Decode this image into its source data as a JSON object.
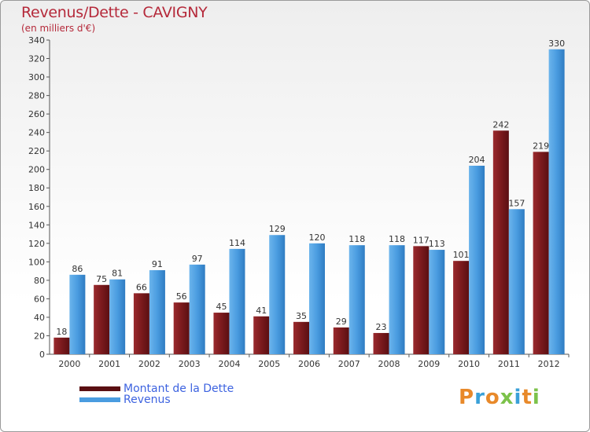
{
  "title": "Revenus/Dette - CAVIGNY",
  "subtitle": "(en milliers d'€)",
  "colors": {
    "dette": "#7b1a1d",
    "revenus": "#4a9ce0",
    "title": "#b5293a",
    "legend_text": "#3d63e0"
  },
  "legend": {
    "dette_label": "Montant de la Dette",
    "revenus_label": "Revenus"
  },
  "logo": {
    "text": "Proxiti",
    "letter_colors": [
      "#e8892a",
      "#3aa0d8",
      "#e8892a",
      "#7cc24a",
      "#3aa0d8",
      "#e8892a",
      "#7cc24a"
    ]
  },
  "chart_data": {
    "type": "bar",
    "title": "Revenus/Dette - CAVIGNY",
    "subtitle": "(en milliers d'€)",
    "categories": [
      "2000",
      "2001",
      "2002",
      "2003",
      "2004",
      "2005",
      "2006",
      "2007",
      "2008",
      "2009",
      "2010",
      "2011",
      "2012"
    ],
    "series": [
      {
        "name": "Montant de la Dette",
        "values": [
          18,
          75,
          66,
          56,
          45,
          41,
          35,
          29,
          23,
          117,
          101,
          242,
          219
        ]
      },
      {
        "name": "Revenus",
        "values": [
          86,
          81,
          91,
          97,
          114,
          129,
          120,
          118,
          118,
          113,
          204,
          157,
          330
        ]
      }
    ],
    "ylim": [
      0,
      340
    ],
    "yticks": [
      0,
      20,
      40,
      60,
      80,
      100,
      120,
      140,
      160,
      180,
      200,
      220,
      240,
      260,
      280,
      300,
      320,
      340
    ],
    "grid": false,
    "legend_position": "bottom-left"
  }
}
